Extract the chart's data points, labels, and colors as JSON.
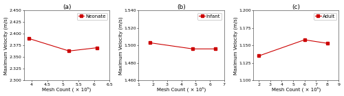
{
  "panels": [
    {
      "label": "(a)",
      "legend": "Neonate",
      "x": [
        3.9,
        5.2,
        6.1
      ],
      "y": [
        2.39,
        2.363,
        2.37
      ],
      "xlim": [
        3.75,
        6.5
      ],
      "ylim": [
        2.3,
        2.45
      ],
      "yticks": [
        2.3,
        2.325,
        2.35,
        2.375,
        2.4,
        2.425,
        2.45
      ],
      "xticks": [
        4.0,
        4.5,
        5.0,
        5.5,
        6.0,
        6.5
      ],
      "ylabel": "Maximum Velocity (m/s)",
      "xlabel": "Mesh Count ( × 10⁵)"
    },
    {
      "label": "(b)",
      "legend": "Infant",
      "x": [
        1.8,
        4.8,
        6.4
      ],
      "y": [
        1.503,
        1.496,
        1.496
      ],
      "xlim": [
        1.0,
        7.0
      ],
      "ylim": [
        1.46,
        1.54
      ],
      "yticks": [
        1.46,
        1.48,
        1.5,
        1.52,
        1.54
      ],
      "xticks": [
        1,
        2,
        3,
        4,
        5,
        6,
        7
      ],
      "ylabel": "Maximum Velocity (m/s)",
      "xlabel": "Mesh Count ( × 10⁵)"
    },
    {
      "label": "(c)",
      "legend": "Adult",
      "x": [
        2.0,
        6.0,
        8.0
      ],
      "y": [
        1.135,
        1.158,
        1.153
      ],
      "xlim": [
        1.5,
        9.0
      ],
      "ylim": [
        1.1,
        1.2
      ],
      "yticks": [
        1.1,
        1.125,
        1.15,
        1.175,
        1.2
      ],
      "xticks": [
        2,
        3,
        4,
        5,
        6,
        7,
        8,
        9
      ],
      "ylabel": "Maximum Velocity (m/s)",
      "xlabel": "Mesh Count ( × 10⁵)"
    }
  ],
  "line_color": "#cc0000",
  "marker": "s",
  "markersize": 3,
  "linewidth": 0.8,
  "background_color": "#ffffff",
  "title_fontsize": 6.5,
  "axis_fontsize": 5.0,
  "tick_fontsize": 4.5,
  "legend_fontsize": 5.0
}
